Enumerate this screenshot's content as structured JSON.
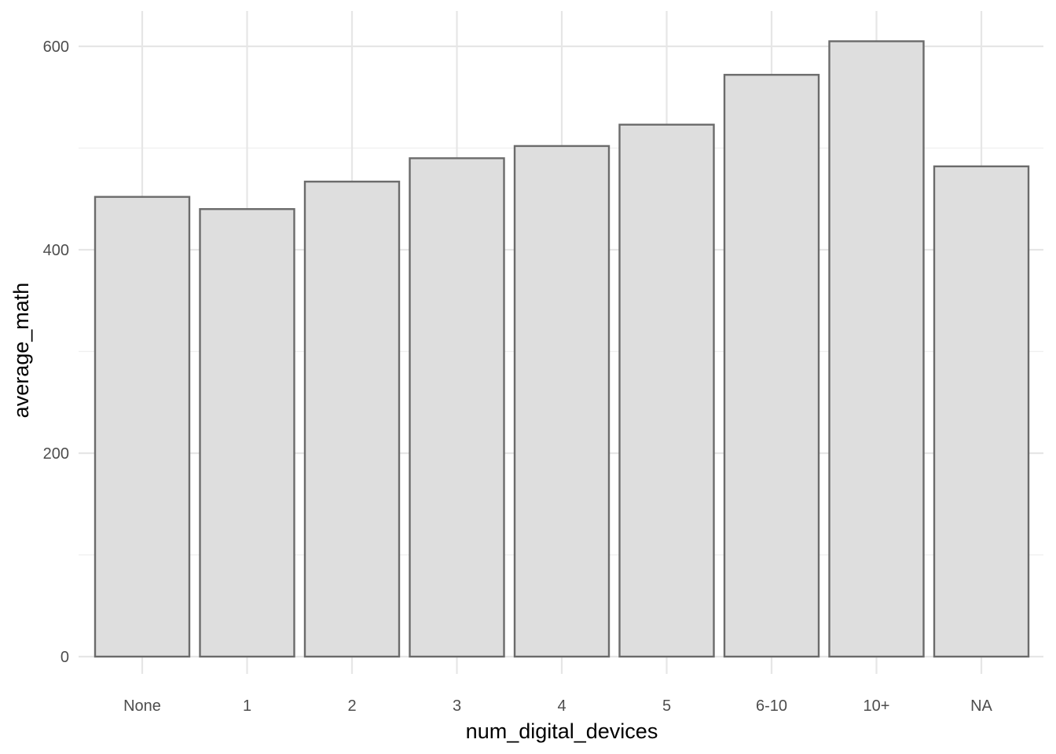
{
  "chart_data": {
    "type": "bar",
    "categories": [
      "None",
      "1",
      "2",
      "3",
      "4",
      "5",
      "6-10",
      "10+",
      "NA"
    ],
    "values": [
      452,
      440,
      467,
      490,
      502,
      523,
      572,
      605,
      482
    ],
    "xlabel": "num_digital_devices",
    "ylabel": "average_math",
    "ylim": [
      0,
      600
    ],
    "y_ticks": [
      "0",
      "200",
      "400",
      "600"
    ],
    "grid": true,
    "legend": "none",
    "colors": {
      "bar_fill": "#dedede",
      "bar_outline": "#6b6b6b",
      "grid": "#e6e6e6"
    }
  }
}
